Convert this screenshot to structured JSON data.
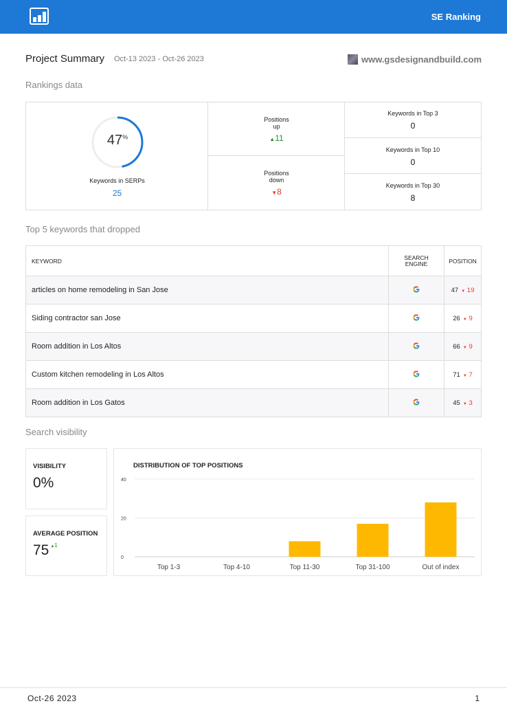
{
  "header": {
    "brand": "SE Ranking"
  },
  "project": {
    "title": "Project Summary",
    "date_range": "Oct-13 2023 - Oct-26 2023",
    "site": "www.gsdesignandbuild.com"
  },
  "rankings": {
    "section_title": "Rankings data",
    "percent": "47",
    "percent_sign": "%",
    "percent_fraction": 0.47,
    "serps_label": "Keywords in SERPs",
    "serps_value": "25",
    "up_label_1": "Positions",
    "up_label_2": "up",
    "up_value": "11",
    "down_label_1": "Positions",
    "down_label_2": "down",
    "down_value": "8",
    "top3_label": "Keywords in Top 3",
    "top3_value": "0",
    "top10_label": "Keywords in Top 10",
    "top10_value": "0",
    "top30_label": "Keywords in Top 30",
    "top30_value": "8"
  },
  "dropped": {
    "section_title": "Top 5 keywords that dropped",
    "col_keyword": "KEYWORD",
    "col_engine_1": "SEARCH",
    "col_engine_2": "ENGINE",
    "col_position": "POSITION",
    "rows": [
      {
        "keyword": "articles on home remodeling in San Jose",
        "position": "47",
        "change": "19"
      },
      {
        "keyword": "Siding contractor san Jose",
        "position": "26",
        "change": "9"
      },
      {
        "keyword": "Room addition in Los Altos",
        "position": "66",
        "change": "9"
      },
      {
        "keyword": "Custom kitchen remodeling in Los Altos",
        "position": "71",
        "change": "7"
      },
      {
        "keyword": "Room addition in Los Gatos",
        "position": "45",
        "change": "3"
      }
    ]
  },
  "visibility": {
    "section_title": "Search visibility",
    "visibility_label": "VISIBILITY",
    "visibility_value": "0%",
    "avg_label": "AVERAGE POSITION",
    "avg_value": "75",
    "avg_change": "1"
  },
  "chart_data": {
    "type": "bar",
    "title": "DISTRIBUTION OF TOP POSITIONS",
    "categories": [
      "Top 1-3",
      "Top 4-10",
      "Top 11-30",
      "Top 31-100",
      "Out of index"
    ],
    "values": [
      0,
      0,
      8,
      17,
      28
    ],
    "ylim": [
      0,
      40
    ],
    "yticks": [
      "0",
      "20",
      "40"
    ],
    "grid": true,
    "color": "#ffb800"
  },
  "footer": {
    "date": "Oct-26 2023",
    "page": "1"
  },
  "colors": {
    "brand_blue": "#1d78d6",
    "up_green": "#2b8a2b",
    "down_red": "#e53935",
    "bar": "#ffb800"
  }
}
